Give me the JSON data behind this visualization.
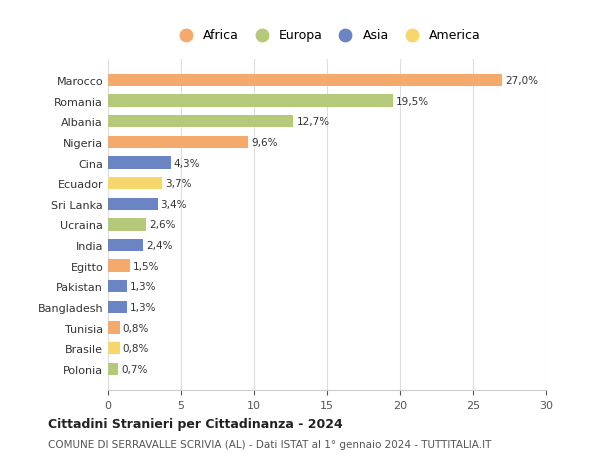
{
  "countries": [
    "Marocco",
    "Romania",
    "Albania",
    "Nigeria",
    "Cina",
    "Ecuador",
    "Sri Lanka",
    "Ucraina",
    "India",
    "Egitto",
    "Pakistan",
    "Bangladesh",
    "Tunisia",
    "Brasile",
    "Polonia"
  ],
  "values": [
    27.0,
    19.5,
    12.7,
    9.6,
    4.3,
    3.7,
    3.4,
    2.6,
    2.4,
    1.5,
    1.3,
    1.3,
    0.8,
    0.8,
    0.7
  ],
  "labels": [
    "27,0%",
    "19,5%",
    "12,7%",
    "9,6%",
    "4,3%",
    "3,7%",
    "3,4%",
    "2,6%",
    "2,4%",
    "1,5%",
    "1,3%",
    "1,3%",
    "0,8%",
    "0,8%",
    "0,7%"
  ],
  "continents": [
    "Africa",
    "Europa",
    "Europa",
    "Africa",
    "Asia",
    "America",
    "Asia",
    "Europa",
    "Asia",
    "Africa",
    "Asia",
    "Asia",
    "Africa",
    "America",
    "Europa"
  ],
  "continent_colors": {
    "Africa": "#F4A96D",
    "Europa": "#B5C97A",
    "Asia": "#6B84C4",
    "America": "#F5D76E"
  },
  "legend_order": [
    "Africa",
    "Europa",
    "Asia",
    "America"
  ],
  "xlim": [
    0,
    30
  ],
  "xticks": [
    0,
    5,
    10,
    15,
    20,
    25,
    30
  ],
  "title": "Cittadini Stranieri per Cittadinanza - 2024",
  "subtitle": "COMUNE DI SERRAVALLE SCRIVIA (AL) - Dati ISTAT al 1° gennaio 2024 - TUTTITALIA.IT",
  "background_color": "#ffffff",
  "bar_height": 0.6,
  "grid_color": "#dddddd"
}
